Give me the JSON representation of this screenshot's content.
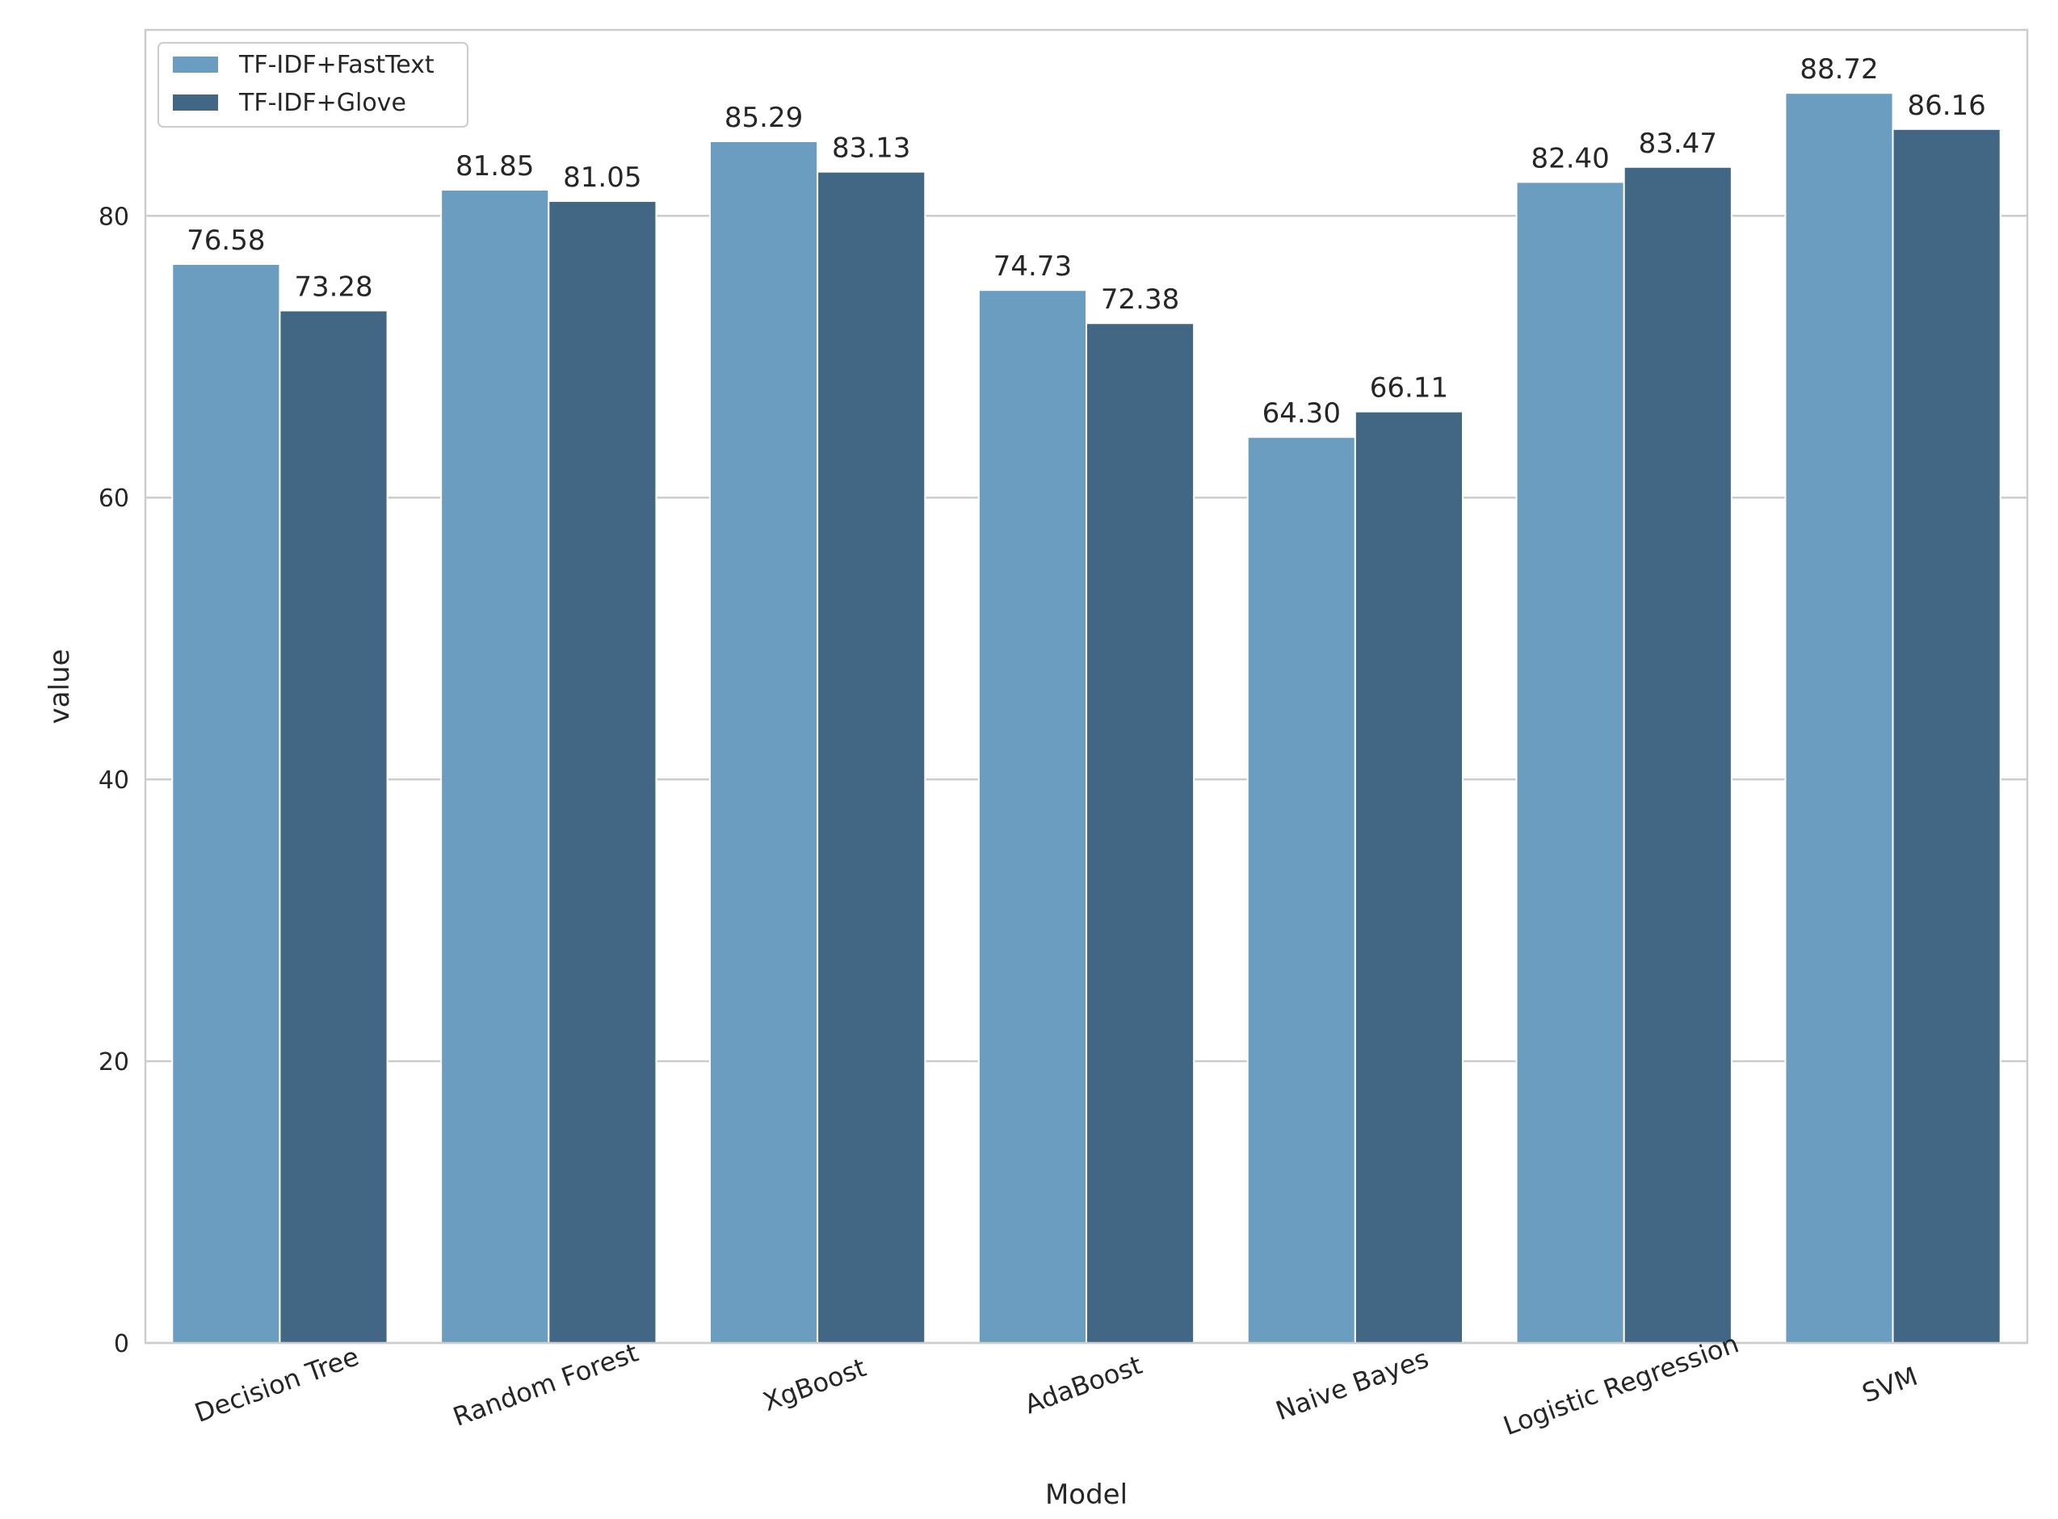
{
  "chart_data": {
    "type": "bar",
    "xlabel": "Model",
    "ylabel": "value",
    "categories": [
      "Decision Tree",
      "Random Forest",
      "XgBoost",
      "AdaBoost",
      "Naive Bayes",
      "Logistic Regression",
      "SVM"
    ],
    "series": [
      {
        "name": "TF-IDF+FastText",
        "values": [
          76.58,
          81.85,
          85.29,
          74.73,
          64.3,
          82.4,
          88.72
        ],
        "labels": [
          "76.58",
          "81.85",
          "85.29",
          "74.73",
          "64.30",
          "82.40",
          "88.72"
        ],
        "color": "#6b9dc0"
      },
      {
        "name": "TF-IDF+Glove",
        "values": [
          73.28,
          81.05,
          83.13,
          72.38,
          66.11,
          83.47,
          86.16
        ],
        "labels": [
          "73.28",
          "81.05",
          "83.13",
          "72.38",
          "66.11",
          "83.47",
          "86.16"
        ],
        "color": "#416784"
      }
    ],
    "ylim": [
      0,
      93.2
    ],
    "yticks": [
      0,
      20,
      40,
      60,
      80
    ],
    "ytick_labels": [
      "0",
      "20",
      "40",
      "60",
      "80"
    ],
    "grid": "horizontal",
    "legend": "top-left"
  }
}
